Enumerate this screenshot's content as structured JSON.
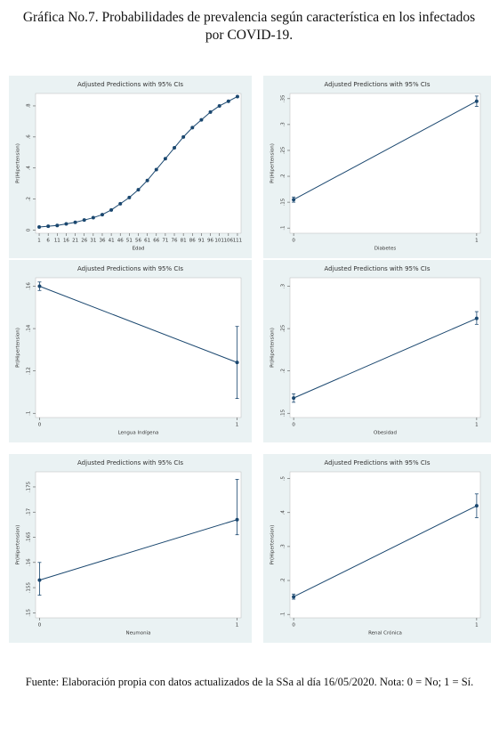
{
  "header": {
    "title": "Gráfica No.7. Probabilidades de prevalencia según característica en los infectados por COVID-19."
  },
  "chart_data": [
    {
      "type": "line",
      "title": "Adjusted Predictions with 95% CIs",
      "xlabel": "Edad",
      "ylabel": "Pr(Hipertension)",
      "color": "#1a476f",
      "x": [
        1,
        6,
        11,
        16,
        21,
        26,
        31,
        36,
        41,
        46,
        51,
        56,
        61,
        66,
        71,
        76,
        81,
        86,
        91,
        96,
        101,
        106,
        111
      ],
      "values": [
        0.02,
        0.025,
        0.03,
        0.04,
        0.05,
        0.065,
        0.08,
        0.1,
        0.13,
        0.17,
        0.21,
        0.26,
        0.32,
        0.39,
        0.46,
        0.53,
        0.6,
        0.66,
        0.71,
        0.76,
        0.8,
        0.83,
        0.86
      ],
      "xlim": [
        -1,
        113
      ],
      "xticks": [
        1,
        6,
        11,
        16,
        21,
        26,
        31,
        36,
        41,
        46,
        51,
        56,
        61,
        66,
        71,
        76,
        81,
        86,
        91,
        96,
        101,
        106,
        111
      ],
      "ylim": [
        -0.02,
        0.88
      ],
      "yticks": [
        0,
        {
          "value": 0.2,
          "label": ".2"
        },
        {
          "value": 0.4,
          "label": ".4"
        },
        {
          "value": 0.6,
          "label": ".6"
        },
        {
          "value": 0.8,
          "label": ".8"
        }
      ]
    },
    {
      "type": "line",
      "title": "Adjusted Predictions with 95% CIs",
      "xlabel": "Diabetes",
      "ylabel": "Pr(Hipertension)",
      "color": "#1a476f",
      "x": [
        0,
        1
      ],
      "values": [
        0.155,
        0.345
      ],
      "ci_low": [
        0.15,
        0.335
      ],
      "ci_high": [
        0.16,
        0.355
      ],
      "xlim": [
        -0.02,
        1.02
      ],
      "xticks": [
        0,
        1
      ],
      "ylim": [
        0.09,
        0.36
      ],
      "yticks": [
        {
          "value": 0.1,
          "label": ".1"
        },
        {
          "value": 0.15,
          "label": ".15"
        },
        {
          "value": 0.2,
          "label": ".2"
        },
        {
          "value": 0.25,
          "label": ".25"
        },
        {
          "value": 0.3,
          "label": ".3"
        },
        {
          "value": 0.35,
          "label": ".35"
        }
      ]
    },
    {
      "type": "line",
      "title": "Adjusted Predictions with 95% CIs",
      "xlabel": "Lengua Indígena",
      "ylabel": "Pr(Hipertension)",
      "color": "#1a476f",
      "x": [
        0,
        1
      ],
      "values": [
        0.16,
        0.124
      ],
      "ci_low": [
        0.158,
        0.107
      ],
      "ci_high": [
        0.162,
        0.141
      ],
      "xlim": [
        -0.02,
        1.02
      ],
      "xticks": [
        0,
        1
      ],
      "ylim": [
        0.098,
        0.164
      ],
      "yticks": [
        {
          "value": 0.1,
          "label": ".1"
        },
        {
          "value": 0.12,
          "label": ".12"
        },
        {
          "value": 0.14,
          "label": ".14"
        },
        {
          "value": 0.16,
          "label": ".16"
        }
      ]
    },
    {
      "type": "line",
      "title": "Adjusted Predictions with 95% CIs",
      "xlabel": "Obesidad",
      "ylabel": "Pr(Hipertension)",
      "color": "#1a476f",
      "x": [
        0,
        1
      ],
      "values": [
        0.168,
        0.262
      ],
      "ci_low": [
        0.163,
        0.255
      ],
      "ci_high": [
        0.173,
        0.27
      ],
      "xlim": [
        -0.02,
        1.02
      ],
      "xticks": [
        0,
        1
      ],
      "ylim": [
        0.145,
        0.31
      ],
      "yticks": [
        {
          "value": 0.15,
          "label": ".15"
        },
        {
          "value": 0.2,
          "label": ".2"
        },
        {
          "value": 0.25,
          "label": ".25"
        },
        {
          "value": 0.3,
          "label": ".3"
        }
      ]
    },
    {
      "type": "line",
      "title": "Adjusted Predictions with 95% CIs",
      "xlabel": "Neumonia",
      "ylabel": "Pr(Hipertension)",
      "color": "#1a476f",
      "x": [
        0,
        1
      ],
      "values": [
        0.1565,
        0.1685
      ],
      "ci_low": [
        0.1535,
        0.1655
      ],
      "ci_high": [
        0.16,
        0.1765
      ],
      "xlim": [
        -0.02,
        1.02
      ],
      "xticks": [
        0,
        1
      ],
      "ylim": [
        0.149,
        0.178
      ],
      "yticks": [
        {
          "value": 0.15,
          "label": ".15"
        },
        {
          "value": 0.155,
          "label": ".155"
        },
        {
          "value": 0.16,
          "label": ".16"
        },
        {
          "value": 0.165,
          "label": ".165"
        },
        {
          "value": 0.17,
          "label": ".17"
        },
        {
          "value": 0.175,
          "label": ".175"
        }
      ]
    },
    {
      "type": "line",
      "title": "Adjusted Predictions with 95% CIs",
      "xlabel": "Renal Crónica",
      "ylabel": "Pr(Hipertension)",
      "color": "#1a476f",
      "x": [
        0,
        1
      ],
      "values": [
        0.152,
        0.42
      ],
      "ci_low": [
        0.145,
        0.385
      ],
      "ci_high": [
        0.16,
        0.455
      ],
      "xlim": [
        -0.02,
        1.02
      ],
      "xticks": [
        0,
        1
      ],
      "ylim": [
        0.09,
        0.52
      ],
      "yticks": [
        {
          "value": 0.1,
          "label": ".1"
        },
        {
          "value": 0.2,
          "label": ".2"
        },
        {
          "value": 0.3,
          "label": ".3"
        },
        {
          "value": 0.4,
          "label": ".4"
        },
        {
          "value": 0.5,
          "label": ".5"
        }
      ]
    }
  ],
  "footer": {
    "text": "Fuente: Elaboración propia con datos actualizados de la SSa al día 16/05/2020. Nota: 0 = No; 1 = Sí."
  }
}
